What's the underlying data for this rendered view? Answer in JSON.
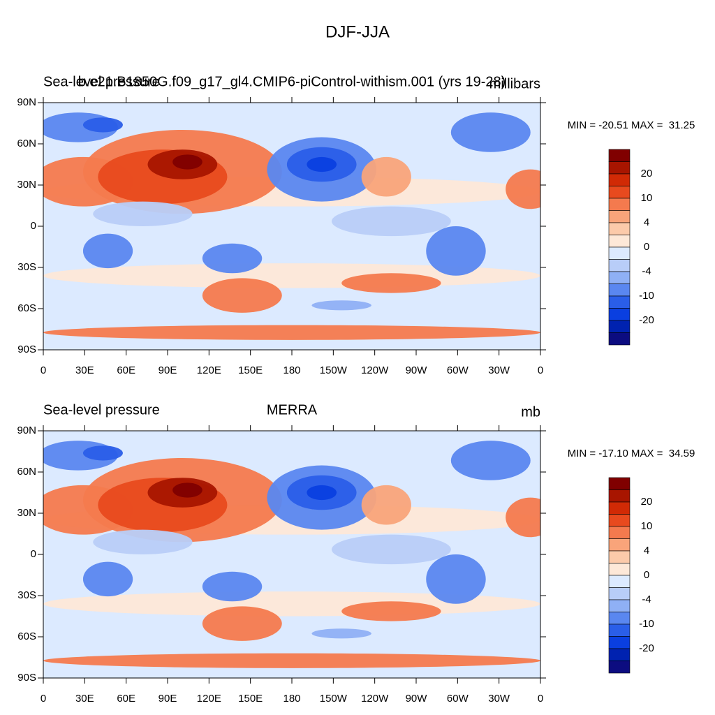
{
  "title": "DJF-JJA",
  "colorbar": {
    "colors": [
      "#800000",
      "#a81500",
      "#d12a05",
      "#e84a1e",
      "#f47a4e",
      "#f9a47a",
      "#fccaaa",
      "#fde8d8",
      "#dceaff",
      "#b8cdf8",
      "#8fb0f5",
      "#5a87f0",
      "#2a5ee8",
      "#0a3fe0",
      "#0022b0",
      "#0c0c80"
    ],
    "labels": [
      20,
      10,
      4,
      0,
      -4,
      -10,
      -20
    ]
  },
  "panels": [
    {
      "left_title": "Sea-level pressure",
      "center_title": "b.e21.B1850G.f09_g17_gl4.CMIP6-piControl-withism.001 (yrs 19-28)",
      "right_title": "millibars",
      "min_max": "MIN = -20.51 MAX =  31.25",
      "x_labels": [
        "0",
        "30E",
        "60E",
        "90E",
        "120E",
        "150E",
        "180",
        "150W",
        "120W",
        "90W",
        "60W",
        "30W",
        "0"
      ],
      "y_labels": [
        "90N",
        "60N",
        "30N",
        "0",
        "30S",
        "60S",
        "90S"
      ]
    },
    {
      "left_title": "Sea-level pressure",
      "center_title": "MERRA",
      "right_title": "mb",
      "min_max": "MIN = -17.10 MAX =  34.59",
      "x_labels": [
        "0",
        "30E",
        "60E",
        "90E",
        "120E",
        "150E",
        "180",
        "150W",
        "120W",
        "90W",
        "60W",
        "30W",
        "0"
      ],
      "y_labels": [
        "90N",
        "60N",
        "30N",
        "0",
        "30S",
        "60S",
        "90S"
      ]
    }
  ]
}
